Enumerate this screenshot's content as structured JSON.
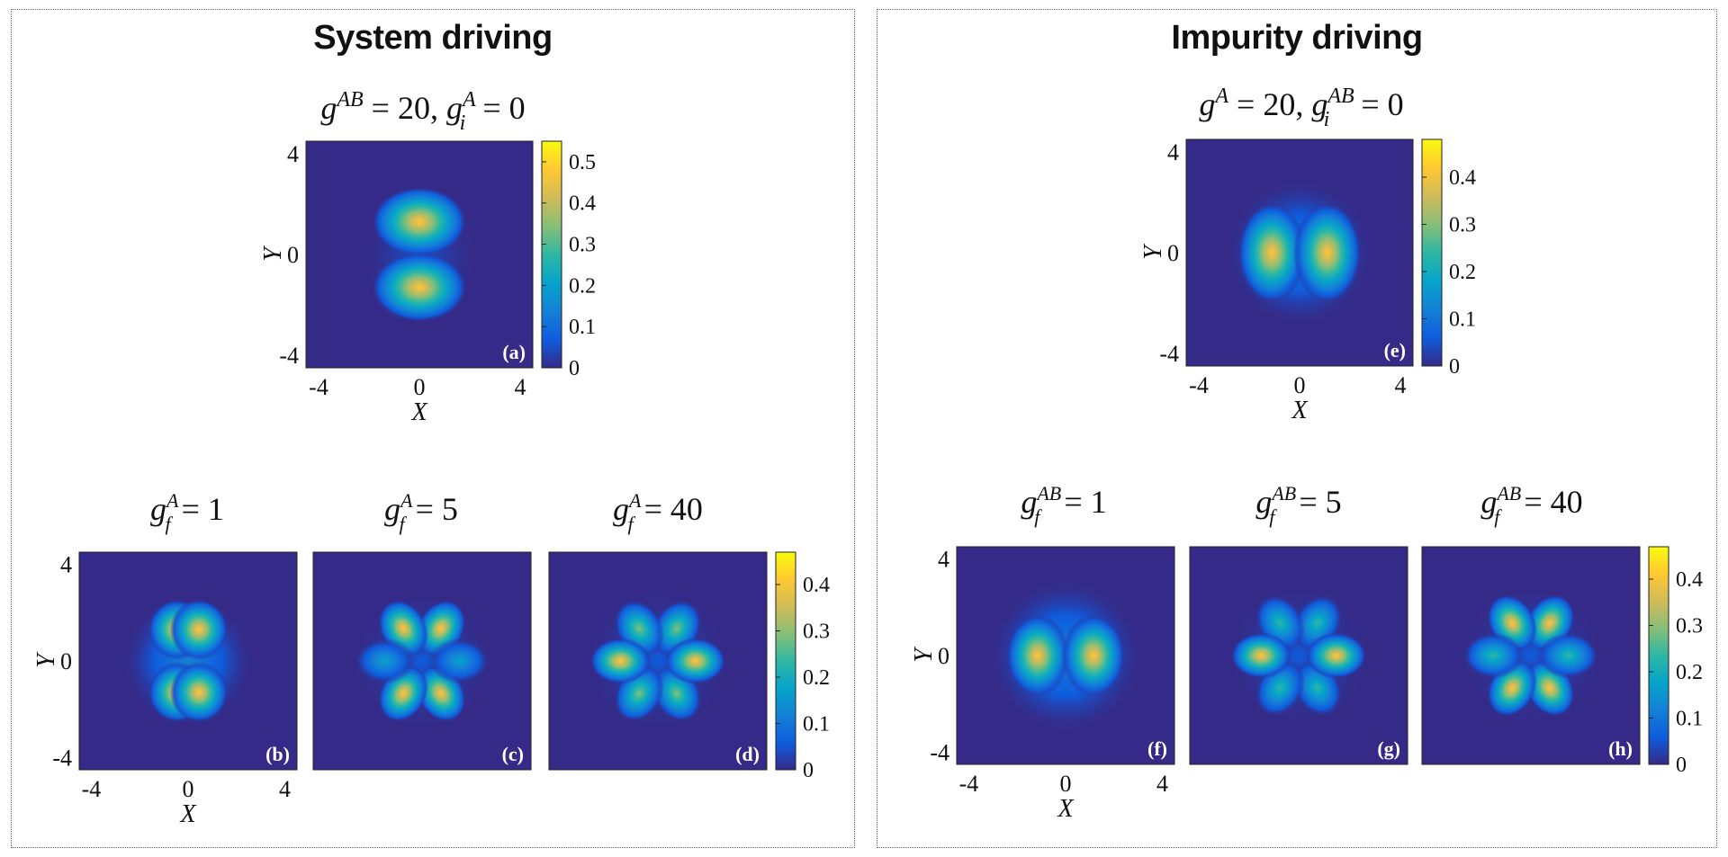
{
  "panels": {
    "left": {
      "title": "System driving"
    },
    "right": {
      "title": "Impurity driving"
    }
  },
  "subtitles": {
    "a": {
      "t1": "g",
      "s1": "AB",
      "r1": " = 20,  ",
      "t2": "g",
      "s2": "A",
      "b2": "i",
      "r2": " = 0"
    },
    "e": {
      "t1": "g",
      "s1": "A",
      "r1": " = 20,  ",
      "t2": "g",
      "s2": "AB",
      "b2": "i",
      "r2": " = 0"
    },
    "b": {
      "t": "g",
      "sup": "A",
      "sub": "f",
      "rest": " = 1"
    },
    "c": {
      "t": "g",
      "sup": "A",
      "sub": "f",
      "rest": " = 5"
    },
    "d": {
      "t": "g",
      "sup": "A",
      "sub": "f",
      "rest": " = 40"
    },
    "f": {
      "t": "g",
      "sup": "AB",
      "sub": "f",
      "rest": " = 1"
    },
    "g": {
      "t": "g",
      "sup": "AB",
      "sub": "f",
      "rest": " = 5"
    },
    "h": {
      "t": "g",
      "sup": "AB",
      "sub": "f",
      "rest": " = 40"
    }
  },
  "axes": {
    "x_label": "X",
    "y_label": "Y",
    "x_ticks": [
      "-4",
      "0",
      "4"
    ],
    "y_ticks": [
      "4",
      "0",
      "-4"
    ],
    "xlim": [
      -4.5,
      4.5
    ],
    "ylim": [
      -4.5,
      4.5
    ]
  },
  "colorbars": {
    "top_left": {
      "ticks": [
        "0.5",
        "0.4",
        "0.3",
        "0.2",
        "0.1",
        "0"
      ],
      "range": [
        0,
        0.55
      ]
    },
    "top_right": {
      "ticks": [
        "0.4",
        "0.3",
        "0.2",
        "0.1",
        "0"
      ],
      "range": [
        0,
        0.48
      ]
    },
    "bottom": {
      "ticks": [
        "0.4",
        "0.3",
        "0.2",
        "0.1",
        "0"
      ],
      "range": [
        0,
        0.47
      ]
    }
  },
  "panel_labels": {
    "a": "(a)",
    "b": "(b)",
    "c": "(c)",
    "d": "(d)",
    "e": "(e)",
    "f": "(f)",
    "g": "(g)",
    "h": "(h)"
  },
  "colormap": [
    "#352a87",
    "#0f5cdd",
    "#1481d6",
    "#06a4ca",
    "#2eb7a4",
    "#87bf77",
    "#d1bb59",
    "#fec832",
    "#f9fb0e"
  ],
  "chart_data": [
    {
      "type": "heatmap",
      "panel": "a",
      "pattern": "two vertical lobes along Y",
      "peak": 0.52,
      "xlim": [
        -4.5,
        4.5
      ],
      "ylim": [
        -4.5,
        4.5
      ]
    },
    {
      "type": "heatmap",
      "panel": "e",
      "pattern": "two horizontal lobes along X",
      "peak": 0.46,
      "xlim": [
        -4.5,
        4.5
      ],
      "ylim": [
        -4.5,
        4.5
      ]
    },
    {
      "type": "heatmap",
      "panel": "b",
      "pattern": "two split vertical lobes",
      "peak": 0.46,
      "xlim": [
        -4.5,
        4.5
      ],
      "ylim": [
        -4.5,
        4.5
      ]
    },
    {
      "type": "heatmap",
      "panel": "c",
      "pattern": "six lobes, top and bottom bright",
      "peak": 0.42,
      "xlim": [
        -4.5,
        4.5
      ],
      "ylim": [
        -4.5,
        4.5
      ]
    },
    {
      "type": "heatmap",
      "panel": "d",
      "pattern": "six lobes, left and right bright",
      "peak": 0.43,
      "xlim": [
        -4.5,
        4.5
      ],
      "ylim": [
        -4.5,
        4.5
      ]
    },
    {
      "type": "heatmap",
      "panel": "f",
      "pattern": "two lobes along X with faint outer ring",
      "peak": 0.45,
      "xlim": [
        -4.5,
        4.5
      ],
      "ylim": [
        -4.5,
        4.5
      ]
    },
    {
      "type": "heatmap",
      "panel": "g",
      "pattern": "six lobes, left and right bright",
      "peak": 0.42,
      "xlim": [
        -4.5,
        4.5
      ],
      "ylim": [
        -4.5,
        4.5
      ]
    },
    {
      "type": "heatmap",
      "panel": "h",
      "pattern": "six lobes, top and bottom bright",
      "peak": 0.41,
      "xlim": [
        -4.5,
        4.5
      ],
      "ylim": [
        -4.5,
        4.5
      ]
    }
  ]
}
